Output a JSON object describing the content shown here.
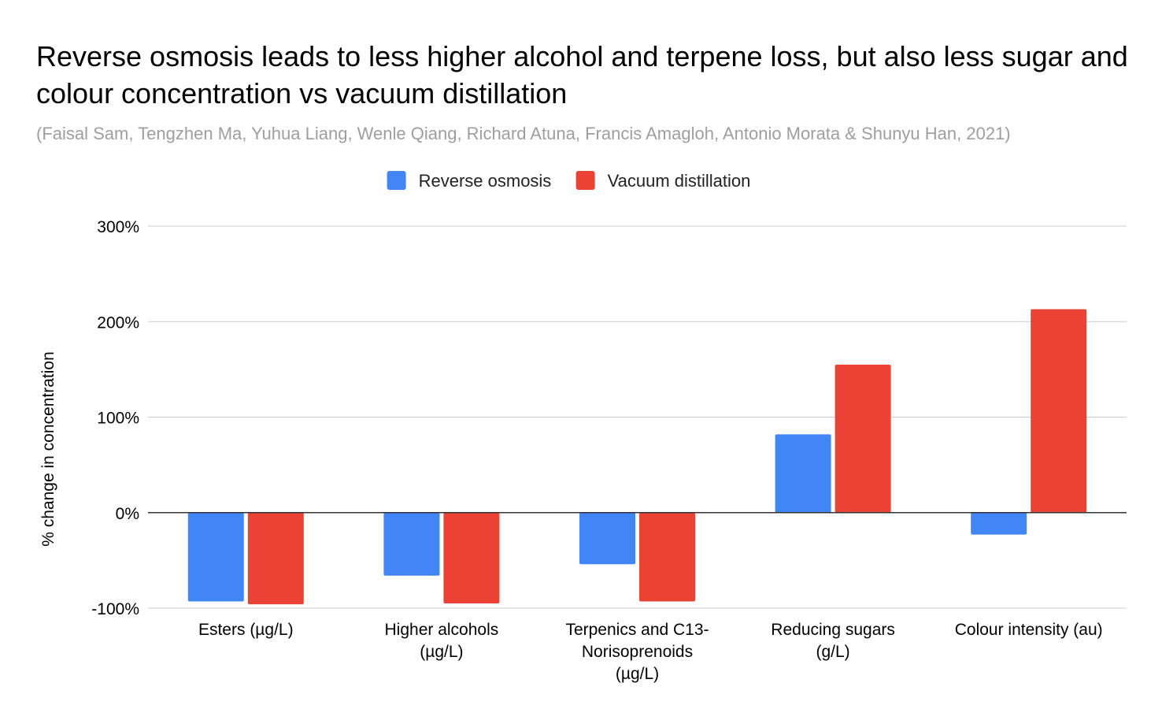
{
  "chart_data": {
    "type": "bar",
    "title": "Reverse osmosis leads to less higher alcohol and terpene loss, but also less sugar and colour concentration vs vacuum distillation",
    "subtitle": "(Faisal Sam, Tengzhen Ma, Yuhua Liang, Wenle Qiang, Richard Atuna, Francis Amagloh, Antonio Morata & Shunyu Han, 2021)",
    "xlabel": "",
    "ylabel": "% change in concentration",
    "ylim": [
      -100,
      300
    ],
    "yticks": [
      {
        "value": 300,
        "label": "300%"
      },
      {
        "value": 200,
        "label": "200%"
      },
      {
        "value": 100,
        "label": "100%"
      },
      {
        "value": 0,
        "label": "0%"
      },
      {
        "value": -100,
        "label": "-100%"
      }
    ],
    "categories": [
      [
        "Esters (µg/L)"
      ],
      [
        "Higher alcohols",
        "(µg/L)"
      ],
      [
        "Terpenics and C13-",
        "Norisoprenoids",
        "(µg/L)"
      ],
      [
        "Reducing sugars",
        "(g/L)"
      ],
      [
        "Colour intensity (au)"
      ]
    ],
    "series": [
      {
        "name": "Reverse osmosis",
        "color": "#4285f4",
        "values": [
          -93,
          -66,
          -54,
          82,
          -23
        ]
      },
      {
        "name": "Vacuum distillation",
        "color": "#ea4335",
        "values": [
          -96,
          -95,
          -93,
          155,
          213
        ]
      }
    ],
    "grid": true,
    "legend_position": "top-center"
  }
}
